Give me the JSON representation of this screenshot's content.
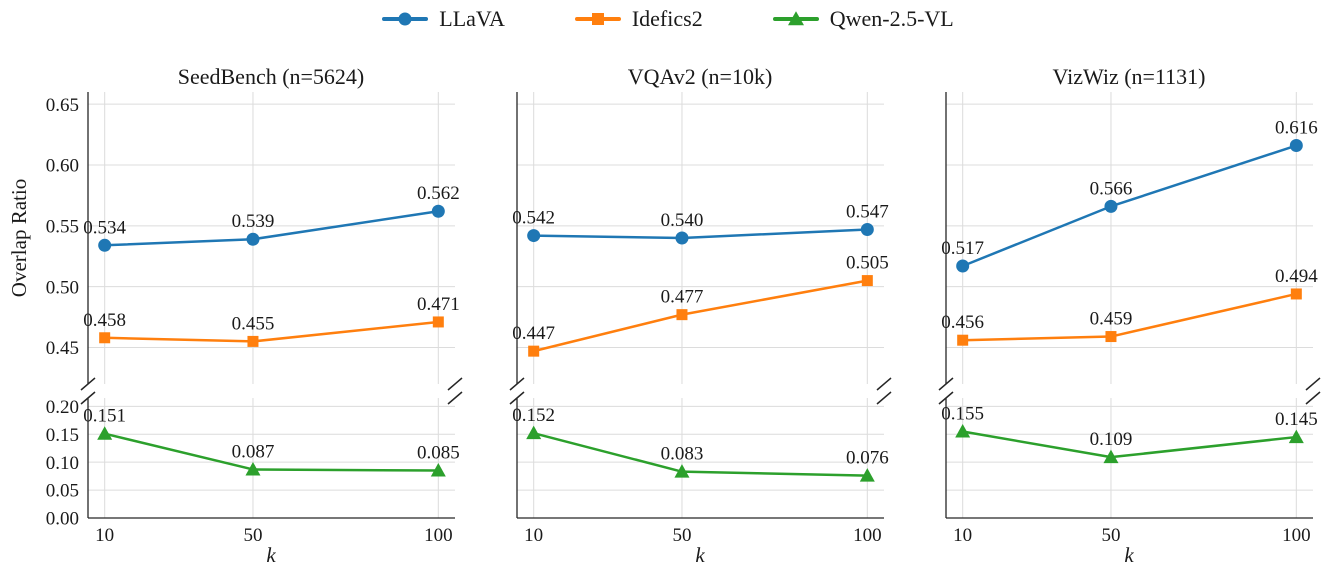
{
  "figure": {
    "ylabel": "Overlap Ratio",
    "background": "#ffffff",
    "text_color": "#1a1a1a",
    "grid_color": "#dcdcdc",
    "spine_color": "#262626"
  },
  "legend": {
    "position": "top-center",
    "entries": [
      {
        "label": "LLaVA",
        "color": "#1f77b4",
        "marker": "circle"
      },
      {
        "label": "Idefics2",
        "color": "#ff7f0e",
        "marker": "square"
      },
      {
        "label": "Qwen-2.5-VL",
        "color": "#2ca02c",
        "marker": "triangle"
      }
    ]
  },
  "chart_data": [
    {
      "type": "line",
      "title": "SeedBench (n=5624)",
      "xlabel": "k",
      "x": [
        10,
        50,
        100
      ],
      "x_ticks": [
        "10",
        "50",
        "100"
      ],
      "grid": true,
      "broken_y_axis": {
        "upper": {
          "ylim": [
            0.42,
            0.66
          ],
          "ticks": [
            0.65,
            0.6,
            0.55,
            0.5,
            0.45
          ],
          "tick_labels": [
            "0.65",
            "0.60",
            "0.55",
            "0.50",
            "0.45"
          ]
        },
        "lower": {
          "ylim": [
            0.0,
            0.215
          ],
          "ticks": [
            0.2,
            0.15,
            0.1,
            0.05,
            0.0
          ],
          "tick_labels": [
            "0.20",
            "0.15",
            "0.10",
            "0.05",
            "0.00"
          ]
        }
      },
      "series": [
        {
          "name": "LLaVA",
          "values": [
            0.534,
            0.539,
            0.562
          ]
        },
        {
          "name": "Idefics2",
          "values": [
            0.458,
            0.455,
            0.471
          ]
        },
        {
          "name": "Qwen-2.5-VL",
          "values": [
            0.151,
            0.087,
            0.085
          ]
        }
      ]
    },
    {
      "type": "line",
      "title": "VQAv2 (n=10k)",
      "xlabel": "k",
      "x": [
        10,
        50,
        100
      ],
      "x_ticks": [
        "10",
        "50",
        "100"
      ],
      "grid": true,
      "broken_y_axis": {
        "upper": {
          "ylim": [
            0.42,
            0.66
          ],
          "ticks": [
            0.65,
            0.6,
            0.55,
            0.5,
            0.45
          ],
          "tick_labels": []
        },
        "lower": {
          "ylim": [
            0.0,
            0.215
          ],
          "ticks": [
            0.2,
            0.15,
            0.1,
            0.05,
            0.0
          ],
          "tick_labels": []
        }
      },
      "series": [
        {
          "name": "LLaVA",
          "values": [
            0.542,
            0.54,
            0.547
          ]
        },
        {
          "name": "Idefics2",
          "values": [
            0.447,
            0.477,
            0.505
          ]
        },
        {
          "name": "Qwen-2.5-VL",
          "values": [
            0.152,
            0.083,
            0.076
          ]
        }
      ]
    },
    {
      "type": "line",
      "title": "VizWiz (n=1131)",
      "xlabel": "k",
      "x": [
        10,
        50,
        100
      ],
      "x_ticks": [
        "10",
        "50",
        "100"
      ],
      "grid": true,
      "broken_y_axis": {
        "upper": {
          "ylim": [
            0.42,
            0.66
          ],
          "ticks": [
            0.65,
            0.6,
            0.55,
            0.5,
            0.45
          ],
          "tick_labels": []
        },
        "lower": {
          "ylim": [
            0.0,
            0.215
          ],
          "ticks": [
            0.2,
            0.15,
            0.1,
            0.05,
            0.0
          ],
          "tick_labels": []
        }
      },
      "series": [
        {
          "name": "LLaVA",
          "values": [
            0.517,
            0.566,
            0.616
          ]
        },
        {
          "name": "Idefics2",
          "values": [
            0.456,
            0.459,
            0.494
          ]
        },
        {
          "name": "Qwen-2.5-VL",
          "values": [
            0.155,
            0.109,
            0.145
          ]
        }
      ]
    }
  ]
}
